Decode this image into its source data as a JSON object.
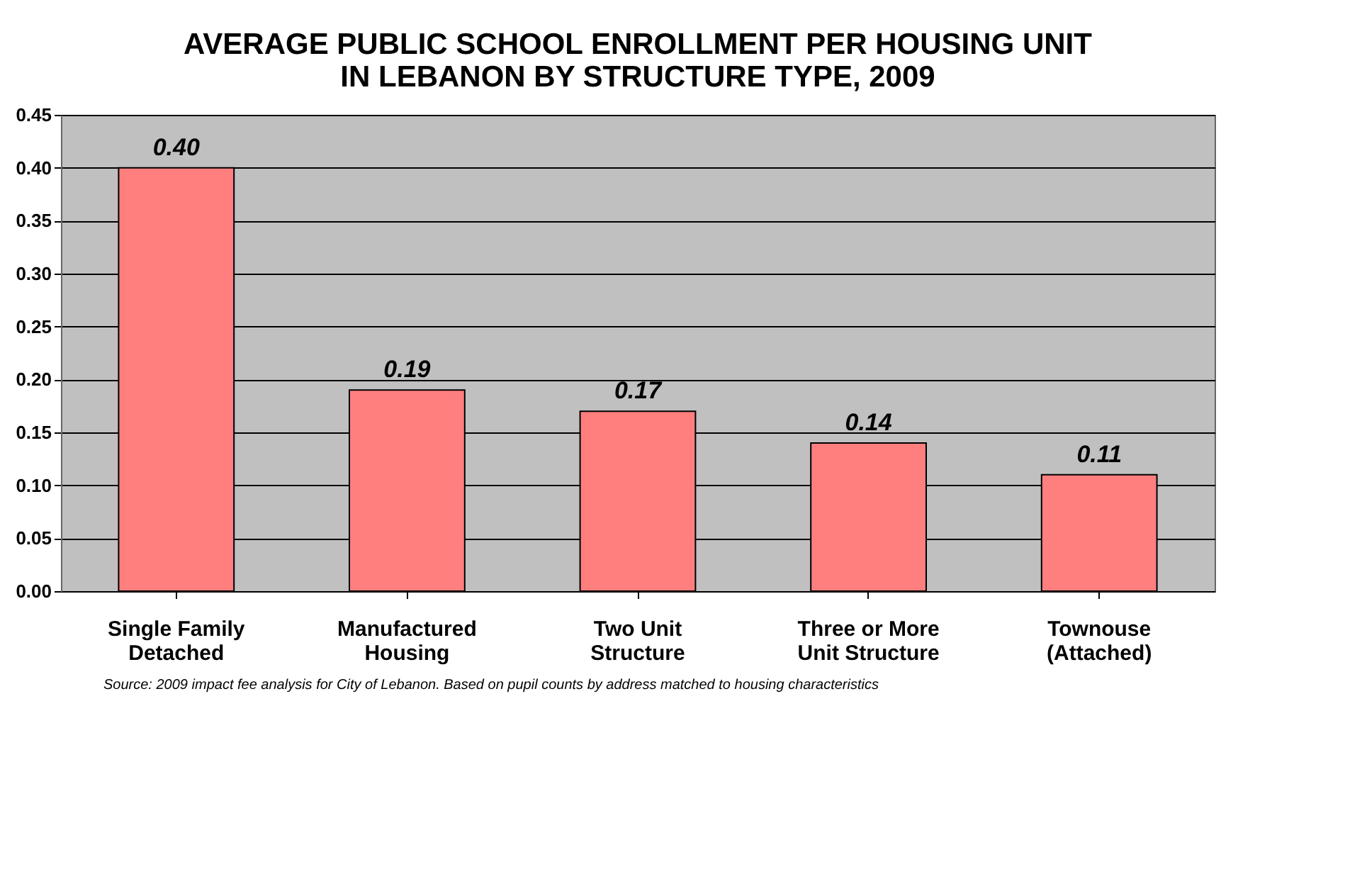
{
  "chart_data": {
    "type": "bar",
    "title": [
      "AVERAGE PUBLIC SCHOOL ENROLLMENT PER HOUSING UNIT",
      "IN LEBANON BY STRUCTURE TYPE, 2009"
    ],
    "categories": [
      "Single Family\nDetached",
      "Manufactured\nHousing",
      "Two Unit\nStructure",
      "Three or More\nUnit Structure",
      "Townouse\n(Attached)"
    ],
    "values": [
      0.4,
      0.19,
      0.17,
      0.14,
      0.11
    ],
    "color": "#ff7f7f",
    "ylim": [
      0,
      0.45
    ],
    "yticks": [
      {
        "value": 0,
        "label": "0.00"
      },
      {
        "value": 0.05,
        "label": "0.05"
      },
      {
        "value": 0.1,
        "label": "0.10"
      },
      {
        "value": 0.15,
        "label": "0.15"
      },
      {
        "value": 0.2,
        "label": "0.20"
      },
      {
        "value": 0.25,
        "label": "0.25"
      },
      {
        "value": 0.3,
        "label": "0.30"
      },
      {
        "value": 0.35,
        "label": "0.35"
      },
      {
        "value": 0.4,
        "label": "0.40"
      },
      {
        "value": 0.45,
        "label": "0.45"
      }
    ],
    "grid": "y",
    "value_labels": [
      "0.40",
      "0.19",
      "0.17",
      "0.14",
      "0.11"
    ],
    "annotations": [
      "Source:  2009 impact fee analysis for City of Lebanon.  Based on pupil counts by address matched to housing characteristics"
    ]
  }
}
